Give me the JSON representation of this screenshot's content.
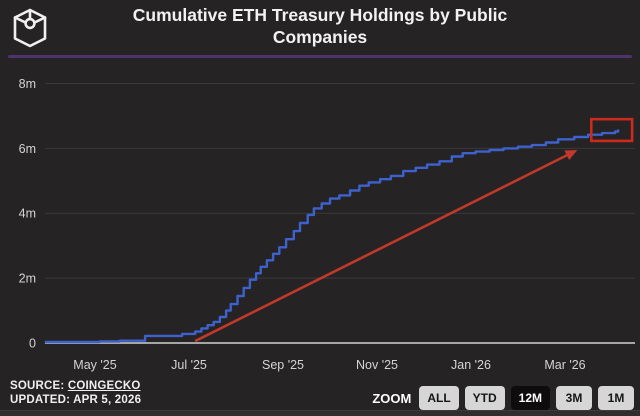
{
  "header": {
    "title_line1": "Cumulative ETH Treasury Holdings by Public",
    "title_line2": "Companies",
    "logo_icon": "wireframe-cube-logo",
    "divider_color": "#4f346b"
  },
  "footer": {
    "source_label": "SOURCE:",
    "source_value": "COINGECKO",
    "updated": "UPDATED: APR 5, 2026"
  },
  "zoom_controls": {
    "label": "ZOOM",
    "buttons": [
      {
        "label": "ALL",
        "active": false
      },
      {
        "label": "YTD",
        "active": false
      },
      {
        "label": "12M",
        "active": true
      },
      {
        "label": "3M",
        "active": false
      },
      {
        "label": "1M",
        "active": false
      }
    ]
  },
  "chart_data": {
    "type": "line",
    "style": "step",
    "title": "Cumulative ETH Treasury Holdings by Public Companies",
    "y_unit": "millions of ETH",
    "ylim": [
      0,
      8.8
    ],
    "grid": "horizontal",
    "y_ticks": [
      {
        "label": "0",
        "value": 0
      },
      {
        "label": "2m",
        "value": 2
      },
      {
        "label": "4m",
        "value": 4
      },
      {
        "label": "6m",
        "value": 6
      },
      {
        "label": "8m",
        "value": 8
      }
    ],
    "x_ticks": [
      {
        "label": "May '25",
        "date": "2025-05-01"
      },
      {
        "label": "Jul '25",
        "date": "2025-07-01"
      },
      {
        "label": "Sep '25",
        "date": "2025-09-01"
      },
      {
        "label": "Nov '25",
        "date": "2025-11-01"
      },
      {
        "label": "Jan '26",
        "date": "2026-01-01"
      },
      {
        "label": "Mar '26",
        "date": "2026-03-01"
      }
    ],
    "x_range": [
      "2025-03-30",
      "2026-04-15"
    ],
    "series": [
      {
        "name": "Cumulative ETH treasury holdings",
        "color": "#3d62cd",
        "points": [
          [
            "2025-03-30",
            0.03
          ],
          [
            "2025-05-04",
            0.05
          ],
          [
            "2025-05-17",
            0.07
          ],
          [
            "2025-06-03",
            0.22
          ],
          [
            "2025-06-27",
            0.28
          ],
          [
            "2025-07-05",
            0.35
          ],
          [
            "2025-07-09",
            0.45
          ],
          [
            "2025-07-13",
            0.55
          ],
          [
            "2025-07-17",
            0.65
          ],
          [
            "2025-07-21",
            0.8
          ],
          [
            "2025-07-25",
            1.0
          ],
          [
            "2025-07-28",
            1.2
          ],
          [
            "2025-08-02",
            1.45
          ],
          [
            "2025-08-06",
            1.7
          ],
          [
            "2025-08-10",
            1.95
          ],
          [
            "2025-08-14",
            2.15
          ],
          [
            "2025-08-17",
            2.35
          ],
          [
            "2025-08-21",
            2.55
          ],
          [
            "2025-08-25",
            2.75
          ],
          [
            "2025-08-29",
            2.95
          ],
          [
            "2025-09-03",
            3.2
          ],
          [
            "2025-09-08",
            3.45
          ],
          [
            "2025-09-12",
            3.7
          ],
          [
            "2025-09-17",
            3.95
          ],
          [
            "2025-09-21",
            4.15
          ],
          [
            "2025-09-26",
            4.3
          ],
          [
            "2025-10-01",
            4.45
          ],
          [
            "2025-10-07",
            4.55
          ],
          [
            "2025-10-14",
            4.7
          ],
          [
            "2025-10-20",
            4.85
          ],
          [
            "2025-10-26",
            4.95
          ],
          [
            "2025-11-03",
            5.05
          ],
          [
            "2025-11-10",
            5.15
          ],
          [
            "2025-11-18",
            5.3
          ],
          [
            "2025-11-26",
            5.4
          ],
          [
            "2025-12-03",
            5.5
          ],
          [
            "2025-12-11",
            5.6
          ],
          [
            "2025-12-19",
            5.75
          ],
          [
            "2025-12-26",
            5.85
          ],
          [
            "2026-01-04",
            5.9
          ],
          [
            "2026-01-13",
            5.95
          ],
          [
            "2026-01-22",
            6.0
          ],
          [
            "2026-02-01",
            6.05
          ],
          [
            "2026-02-10",
            6.1
          ],
          [
            "2026-02-19",
            6.18
          ],
          [
            "2026-02-27",
            6.28
          ],
          [
            "2026-03-07",
            6.35
          ],
          [
            "2026-03-16",
            6.42
          ],
          [
            "2026-03-25",
            6.47
          ],
          [
            "2026-04-03",
            6.52
          ],
          [
            "2026-04-05",
            6.55
          ]
        ]
      }
    ],
    "annotations": {
      "arrow": {
        "color": "#c0392b",
        "from": {
          "date": "2025-07-05",
          "value": 0.06
        },
        "to": {
          "date": "2026-03-09",
          "value": 5.95
        }
      },
      "highlight_box": {
        "color": "#cc2a1c",
        "x_from": "2026-03-18",
        "x_to": "2026-04-14",
        "y_from": 6.23,
        "y_to": 6.9
      }
    },
    "colors": {
      "background": "#262324",
      "gridline": "#3a3a3a",
      "axis_line": "#a6a6a6",
      "tick_text": "#d4d4d4"
    }
  }
}
